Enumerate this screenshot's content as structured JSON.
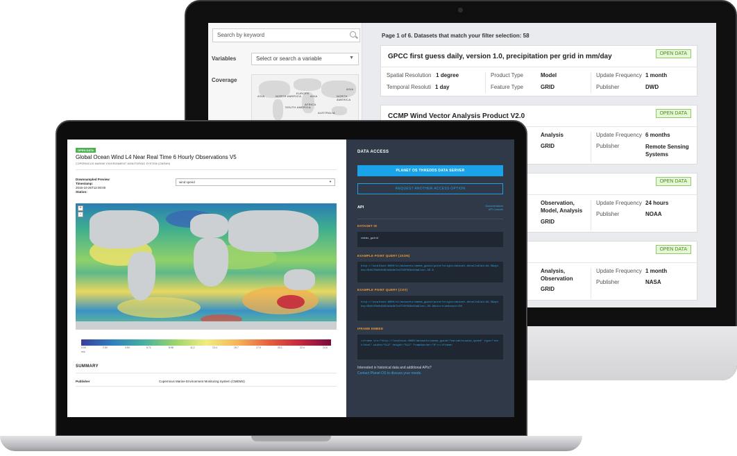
{
  "monitor": {
    "search_placeholder": "Search by keyword",
    "variables_label": "Variables",
    "variables_select": "Select or search a variable",
    "coverage_label": "Coverage",
    "map_labels": [
      "ASIA",
      "NORTH AMERICA",
      "EUROPE",
      "ASIA",
      "AFRICA",
      "SOUTH AMERICA",
      "AUSTRALIA",
      "NORTH AMERICA",
      "ASIA"
    ],
    "page_info": "Page 1 of 6. Datasets that match your filter selection: 58",
    "cards": [
      {
        "title": "GPCC first guess daily, version 1.0, precipitation per grid in mm/day",
        "badge": "OPEN DATA",
        "spatial_k": "Spatial Resolution",
        "spatial_v": "1 degree",
        "temporal_k": "Temporal Resolution",
        "temporal_v": "1 day",
        "product_k": "Product Type",
        "product_v": "Model",
        "feature_k": "Feature Type",
        "feature_v": "GRID",
        "update_k": "Update Frequency",
        "update_v": "1 month",
        "publisher_k": "Publisher",
        "publisher_v": "DWD"
      },
      {
        "title": "CCMP Wind Vector Analysis Product V2.0",
        "badge": "OPEN DATA",
        "product_v": "Analysis",
        "feature_v": "GRID",
        "update_k": "Update Frequency",
        "update_v": "6 months",
        "publisher_k": "Publisher",
        "publisher_v": "Remote Sensing Systems"
      },
      {
        "badge": "OPEN DATA",
        "product_v": "Observation, Model, Analysis",
        "feature_v": "GRID",
        "update_k": "Update Frequency",
        "update_v": "24 hours",
        "publisher_k": "Publisher",
        "publisher_v": "NOAA"
      },
      {
        "badge": "OPEN DATA",
        "product_v": "Analysis, Observation",
        "feature_v": "GRID",
        "update_k": "Update Frequency",
        "update_v": "1 month",
        "publisher_k": "Publisher",
        "publisher_v": "NASA"
      }
    ]
  },
  "laptop": {
    "badge": "OPEN DATA",
    "title": "Global Ocean Wind L4 Near Real Time 6 Hourly Observations V5",
    "subtitle": "COPERNICUS MARINE ENVIRONMENT MONITORING SYSTEM (CMEMS)",
    "preview_label": "Downsampled Preview",
    "timestamp_label": "Timestamp:",
    "timestamp_value": "2016-10-26T12:00:00",
    "station_label": "Station:",
    "variable_select": "wind speed",
    "zoom_in": "+",
    "zoom_out": "-",
    "legend_ticks": [
      "0.00",
      "2.50",
      "4.53",
      "6.71",
      "8.98",
      "11.2",
      "13.4",
      "15.7",
      "17.9",
      "20.1",
      "22.4",
      "24.6"
    ],
    "legend_unit": "m/s",
    "summary_heading": "SUMMARY",
    "publisher_label": "Publisher",
    "publisher_value": "Copernicus Marine Environment Monitoring System (CMEMS)",
    "access": {
      "heading": "DATA ACCESS",
      "primary_button": "PLANET OS THREDDS DATA SERVER",
      "secondary_button": "REQUEST ANOTHER ACCESS OPTION",
      "api_label": "API",
      "doc_link": "Documentation",
      "console_link": "API Console",
      "dataset_id_label": "DATASET ID",
      "dataset_id": "cmems_gwind",
      "json_label": "EXAMPLE POINT QUERY (JSON)",
      "json_code": "http://localhost:8000/v1/datasets/cmems_gwind/point?origin=dataset-details&lat=49.5&apikey=0b61f8e0d5464d4a9e7ed726f069c94a&lon=-50.9",
      "csv_label": "EXAMPLE POINT QUERY (CSV)",
      "csv_code": "http://localhost:8000/v1/datasets/cmems_gwind/point?origin=dataset-details&lat=49.5&apikey=0b61f8e0d5464d4a9e7ed726f069c94a&lon=-50.9&csv=true&count=50",
      "iframe_label": "IFRAME EMBED",
      "iframe_code": "<iframe src=\"http://localhost:8000/datasets/cmems_gwind/?variable=wind_speed\" type=\"text/html\" width=\"512\" height=\"512\" frameborder=\"0\"></iframe>",
      "footer_text": "Interested in historical data and additional APIs?",
      "footer_link": "Contact Planet OS to discuss your needs."
    }
  }
}
